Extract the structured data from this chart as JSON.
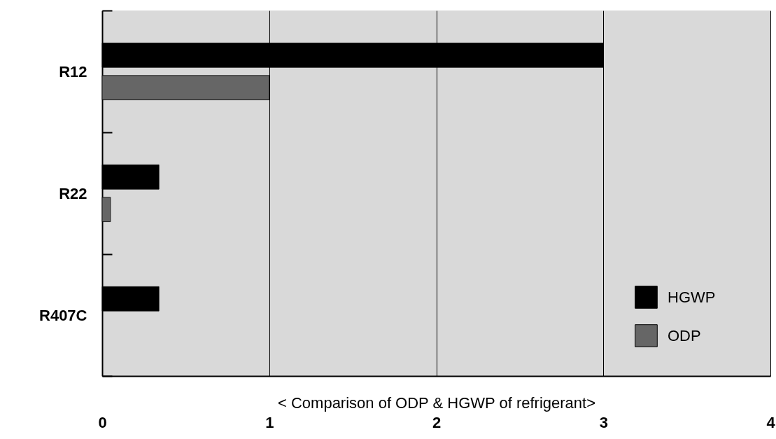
{
  "chart_data": {
    "type": "bar",
    "orientation": "horizontal",
    "xlabel": "< Comparison of ODP & HGWP of refrigerant>",
    "categories": [
      "R12",
      "R22",
      "R407C"
    ],
    "series": [
      {
        "name": "HGWP",
        "color": "#000000",
        "values": [
          3,
          0.34,
          0.34
        ]
      },
      {
        "name": "ODP",
        "color": "#666666",
        "values": [
          1,
          0.05,
          0
        ]
      }
    ],
    "xlim": [
      0,
      4
    ],
    "xticks": [
      0,
      1,
      2,
      3,
      4
    ],
    "grid": "x",
    "legend": "bottom right"
  }
}
